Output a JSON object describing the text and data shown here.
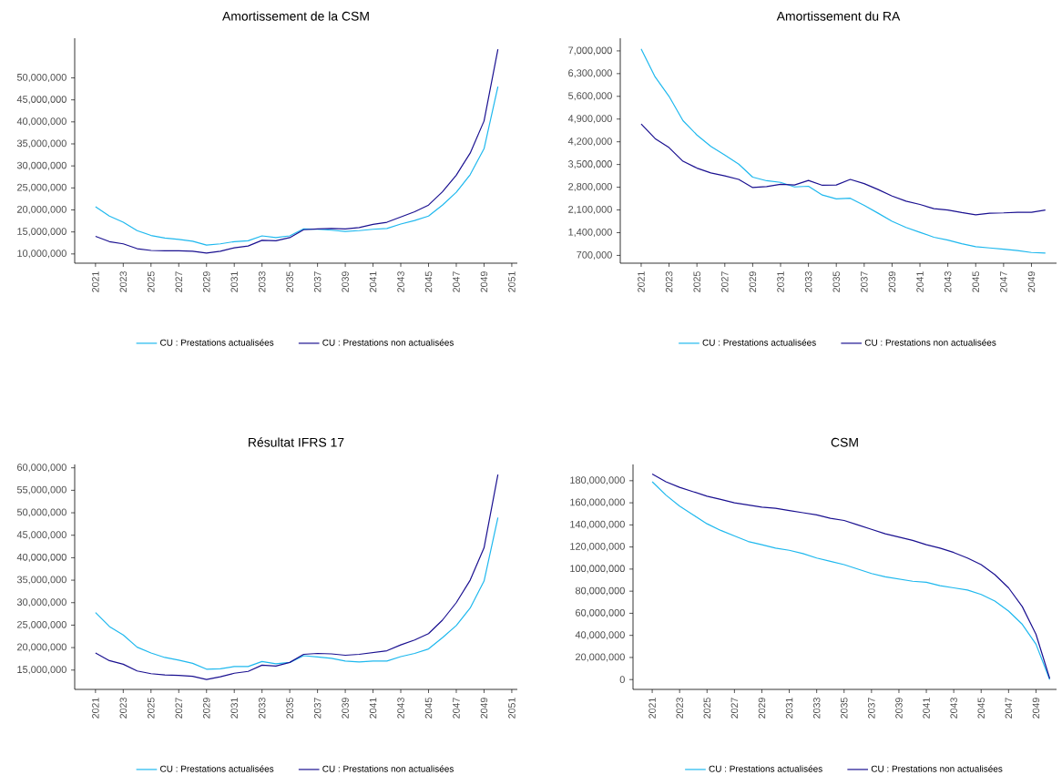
{
  "chart_data": [
    {
      "type": "line",
      "title": "Amortissement de la CSM",
      "legend": "bottom",
      "x": [
        2021,
        2022,
        2023,
        2024,
        2025,
        2026,
        2027,
        2028,
        2029,
        2030,
        2031,
        2032,
        2033,
        2034,
        2035,
        2036,
        2037,
        2038,
        2039,
        2040,
        2041,
        2042,
        2043,
        2044,
        2045,
        2046,
        2047,
        2048,
        2049,
        2050
      ],
      "xlim": [
        2019.5,
        2051.4
      ],
      "xticks": [
        2021,
        2023,
        2025,
        2027,
        2029,
        2031,
        2033,
        2035,
        2037,
        2039,
        2041,
        2043,
        2045,
        2047,
        2049,
        2051
      ],
      "ylim": [
        7900000,
        59000000
      ],
      "yticks": [
        {
          "value": 10000000,
          "label": "10,000,000"
        },
        {
          "value": 15000000,
          "label": "15,000,000"
        },
        {
          "value": 20000000,
          "label": "20,000,000"
        },
        {
          "value": 25000000,
          "label": "25,000,000"
        },
        {
          "value": 30000000,
          "label": "30,000,000"
        },
        {
          "value": 35000000,
          "label": "35,000,000"
        },
        {
          "value": 40000000,
          "label": "40,000,000"
        },
        {
          "value": 45000000,
          "label": "45,000,000"
        },
        {
          "value": 50000000,
          "label": "50,000,000"
        }
      ],
      "series": [
        {
          "name": "CU : Prestations actualisées",
          "color": "#1eb8ee",
          "values": [
            20700000,
            18600000,
            17200000,
            15300000,
            14200000,
            13600000,
            13300000,
            12900000,
            12000000,
            12300000,
            12800000,
            13000000,
            14100000,
            13700000,
            14100000,
            15700000,
            15600000,
            15400000,
            15100000,
            15300000,
            15600000,
            15800000,
            16800000,
            17600000,
            18600000,
            21100000,
            24000000,
            28000000,
            33900000,
            48000000
          ]
        },
        {
          "name": "CU : Prestations non actualisées",
          "color": "#1a1090",
          "values": [
            14000000,
            12800000,
            12300000,
            11200000,
            10800000,
            10700000,
            10700000,
            10600000,
            10200000,
            10600000,
            11400000,
            11800000,
            13100000,
            13000000,
            13700000,
            15500000,
            15700000,
            15800000,
            15700000,
            16000000,
            16700000,
            17200000,
            18400000,
            19600000,
            21100000,
            24100000,
            27900000,
            32900000,
            40200000,
            56500000
          ]
        }
      ]
    },
    {
      "type": "line",
      "title": "Amortissement du RA",
      "legend": "bottom",
      "x": [
        2021,
        2022,
        2023,
        2024,
        2025,
        2026,
        2027,
        2028,
        2029,
        2030,
        2031,
        2032,
        2033,
        2034,
        2035,
        2036,
        2037,
        2038,
        2039,
        2040,
        2041,
        2042,
        2043,
        2044,
        2045,
        2046,
        2047,
        2048,
        2049,
        2050
      ],
      "xlim": [
        2019.5,
        2050.8
      ],
      "xticks": [
        2021,
        2023,
        2025,
        2027,
        2029,
        2031,
        2033,
        2035,
        2037,
        2039,
        2041,
        2043,
        2045,
        2047,
        2049
      ],
      "ylim": [
        460000,
        7390000
      ],
      "yticks": [
        {
          "value": 700000,
          "label": "700,000"
        },
        {
          "value": 1400000,
          "label": "1,400,000"
        },
        {
          "value": 2100000,
          "label": "2,100,000"
        },
        {
          "value": 2800000,
          "label": "2,800,000"
        },
        {
          "value": 3500000,
          "label": "3,500,000"
        },
        {
          "value": 4200000,
          "label": "4,200,000"
        },
        {
          "value": 4900000,
          "label": "4,900,000"
        },
        {
          "value": 5600000,
          "label": "5,600,000"
        },
        {
          "value": 6300000,
          "label": "6,300,000"
        },
        {
          "value": 7000000,
          "label": "7,000,000"
        }
      ],
      "series": [
        {
          "name": "CU : Prestations actualisées",
          "color": "#1eb8ee",
          "values": [
            7060000,
            6200000,
            5600000,
            4850000,
            4410000,
            4060000,
            3790000,
            3510000,
            3110000,
            3000000,
            2950000,
            2810000,
            2830000,
            2560000,
            2440000,
            2460000,
            2240000,
            2000000,
            1750000,
            1560000,
            1410000,
            1260000,
            1170000,
            1060000,
            970000,
            930000,
            890000,
            850000,
            790000,
            770000
          ]
        },
        {
          "name": "CU : Prestations non actualisées",
          "color": "#1a1090",
          "values": [
            4750000,
            4300000,
            4020000,
            3600000,
            3390000,
            3240000,
            3150000,
            3040000,
            2790000,
            2820000,
            2890000,
            2870000,
            3010000,
            2860000,
            2870000,
            3040000,
            2910000,
            2730000,
            2530000,
            2370000,
            2270000,
            2140000,
            2100000,
            2020000,
            1950000,
            2000000,
            2010000,
            2030000,
            2030000,
            2100000
          ]
        }
      ]
    },
    {
      "type": "line",
      "title": "Résultat IFRS 17",
      "legend": "bottom",
      "x": [
        2021,
        2022,
        2023,
        2024,
        2025,
        2026,
        2027,
        2028,
        2029,
        2030,
        2031,
        2032,
        2033,
        2034,
        2035,
        2036,
        2037,
        2038,
        2039,
        2040,
        2041,
        2042,
        2043,
        2044,
        2045,
        2046,
        2047,
        2048,
        2049,
        2050
      ],
      "xlim": [
        2019.5,
        2051.4
      ],
      "xticks": [
        2021,
        2023,
        2025,
        2027,
        2029,
        2031,
        2033,
        2035,
        2037,
        2039,
        2041,
        2043,
        2045,
        2047,
        2049,
        2051
      ],
      "ylim": [
        10700000,
        60750000
      ],
      "yticks": [
        {
          "value": 15000000,
          "label": "15,000,000"
        },
        {
          "value": 20000000,
          "label": "20,000,000"
        },
        {
          "value": 25000000,
          "label": "25,000,000"
        },
        {
          "value": 30000000,
          "label": "30,000,000"
        },
        {
          "value": 35000000,
          "label": "35,000,000"
        },
        {
          "value": 40000000,
          "label": "40,000,000"
        },
        {
          "value": 45000000,
          "label": "45,000,000"
        },
        {
          "value": 50000000,
          "label": "50,000,000"
        },
        {
          "value": 55000000,
          "label": "55,000,000"
        },
        {
          "value": 60000000,
          "label": "60,000,000"
        }
      ],
      "series": [
        {
          "name": "CU : Prestations actualisées",
          "color": "#1eb8ee",
          "values": [
            27800000,
            24700000,
            22800000,
            20100000,
            18800000,
            17800000,
            17200000,
            16500000,
            15200000,
            15300000,
            15800000,
            15800000,
            16900000,
            16400000,
            16700000,
            18200000,
            17900000,
            17600000,
            17000000,
            16800000,
            17000000,
            17000000,
            18000000,
            18700000,
            19700000,
            22200000,
            24900000,
            28800000,
            34800000,
            48900000
          ]
        },
        {
          "name": "CU : Prestations non actualisées",
          "color": "#1a1090",
          "values": [
            18800000,
            17100000,
            16300000,
            14800000,
            14200000,
            13900000,
            13800000,
            13600000,
            12900000,
            13500000,
            14300000,
            14700000,
            16100000,
            15900000,
            16700000,
            18500000,
            18700000,
            18600000,
            18300000,
            18500000,
            18900000,
            19300000,
            20600000,
            21700000,
            23100000,
            26100000,
            30000000,
            35000000,
            42200000,
            58500000
          ]
        }
      ]
    },
    {
      "type": "line",
      "title": "CSM",
      "legend": "bottom",
      "x": [
        2021,
        2022,
        2023,
        2024,
        2025,
        2026,
        2027,
        2028,
        2029,
        2030,
        2031,
        2032,
        2033,
        2034,
        2035,
        2036,
        2037,
        2038,
        2039,
        2040,
        2041,
        2042,
        2043,
        2044,
        2045,
        2046,
        2047,
        2048,
        2049,
        2050
      ],
      "xlim": [
        2019.6,
        2050.5
      ],
      "xticks": [
        2021,
        2023,
        2025,
        2027,
        2029,
        2031,
        2033,
        2035,
        2037,
        2039,
        2041,
        2043,
        2045,
        2047,
        2049
      ],
      "ylim": [
        -8900000,
        194700000
      ],
      "yticks": [
        0,
        {
          "value": 20000000,
          "label": "20,000,000"
        },
        {
          "value": 40000000,
          "label": "40,000,000"
        },
        {
          "value": 60000000,
          "label": "60,000,000"
        },
        {
          "value": 80000000,
          "label": "80,000,000"
        },
        {
          "value": 100000000,
          "label": "100,000,000"
        },
        {
          "value": 120000000,
          "label": "120,000,000"
        },
        {
          "value": 140000000,
          "label": "140,000,000"
        },
        {
          "value": 160000000,
          "label": "160,000,000"
        },
        {
          "value": 180000000,
          "label": "180,000,000"
        }
      ],
      "series": [
        {
          "name": "CU : Prestations actualisées",
          "color": "#1eb8ee",
          "values": [
            179000000,
            167000000,
            157000000,
            149000000,
            141000000,
            135000000,
            130000000,
            125000000,
            122000000,
            119000000,
            117000000,
            114000000,
            110000000,
            107000000,
            104000000,
            100000000,
            96000000,
            93000000,
            91000000,
            89000000,
            88000000,
            85000000,
            83000000,
            81000000,
            77000000,
            71000000,
            62000000,
            50000000,
            32000000,
            0
          ]
        },
        {
          "name": "CU : Prestations non actualisées",
          "color": "#1a1090",
          "values": [
            186000000,
            179000000,
            174000000,
            170000000,
            166000000,
            163000000,
            160000000,
            158000000,
            156000000,
            155000000,
            153000000,
            151000000,
            149000000,
            146000000,
            144000000,
            140000000,
            136000000,
            132000000,
            129000000,
            126000000,
            122000000,
            119000000,
            115000000,
            110000000,
            104000000,
            95000000,
            83000000,
            66000000,
            41000000,
            1000000
          ]
        }
      ]
    }
  ]
}
